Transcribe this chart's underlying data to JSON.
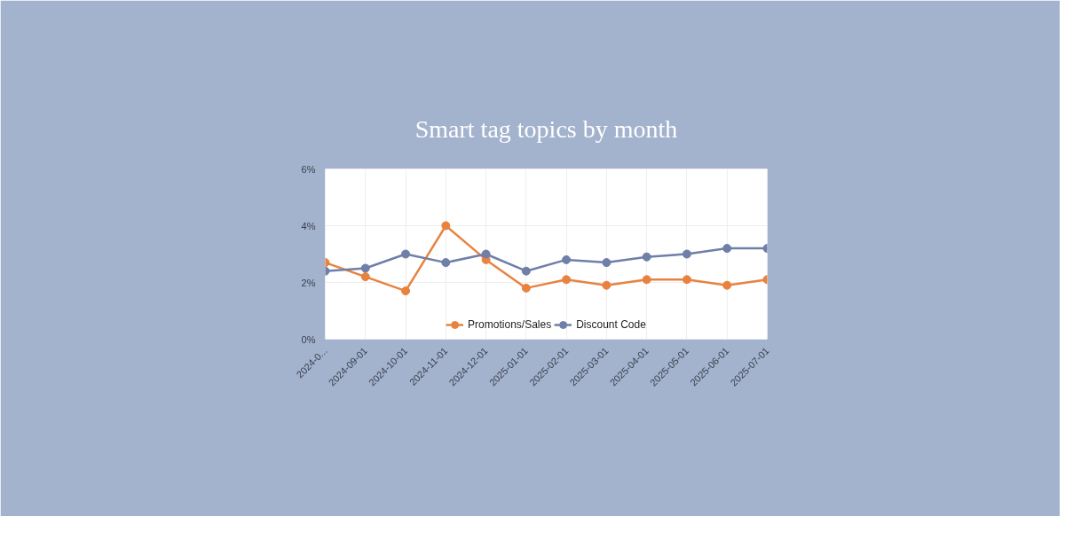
{
  "chart_data": {
    "type": "line",
    "title": "Smart tag topics by month",
    "categories": [
      "2024-0...",
      "2024-09-01",
      "2024-10-01",
      "2024-11-01",
      "2024-12-01",
      "2025-01-01",
      "2025-02-01",
      "2025-03-01",
      "2025-04-01",
      "2025-05-01",
      "2025-06-01",
      "2025-07-01"
    ],
    "series": [
      {
        "name": "Promotions/Sales",
        "color": "#e8833f",
        "values": [
          2.7,
          2.2,
          1.7,
          4.0,
          2.8,
          1.8,
          2.1,
          1.9,
          2.1,
          2.1,
          1.9,
          2.1
        ]
      },
      {
        "name": "Discount Code",
        "color": "#6f7fa8",
        "values": [
          2.4,
          2.5,
          3.0,
          2.7,
          3.0,
          2.4,
          2.8,
          2.7,
          2.9,
          3.0,
          3.2,
          3.2
        ]
      }
    ],
    "ylim": [
      0,
      6
    ],
    "yticks": [
      {
        "value": 0,
        "label": "0%"
      },
      {
        "value": 2,
        "label": "2%"
      },
      {
        "value": 4,
        "label": "4%"
      },
      {
        "value": 6,
        "label": "6%"
      }
    ],
    "grid": true,
    "legend": "bottom",
    "marker": "circle",
    "line_style": "solid"
  }
}
